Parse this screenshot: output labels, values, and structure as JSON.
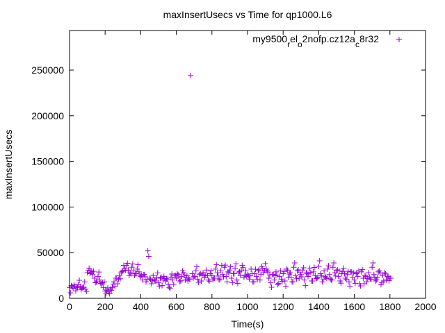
{
  "chart_data": {
    "type": "scatter",
    "title": "maxInsertUsecs vs Time for qp1000.L6",
    "xlabel": "Time(s)",
    "ylabel": "maxInsertUsecs",
    "xlim": [
      0,
      2000
    ],
    "ylim": [
      0,
      280000
    ],
    "xticks": [
      0,
      200,
      400,
      600,
      800,
      1000,
      1200,
      1400,
      1600,
      1800,
      2000
    ],
    "yticks": [
      0,
      50000,
      100000,
      150000,
      200000,
      250000
    ],
    "legend_placement": "top-right",
    "grid": false,
    "series": [
      {
        "name": "my9500_rel_o2nofp.cz12a_c8r32",
        "legend_parts": [
          "my9500",
          "r",
          "el",
          "o",
          "2nofp.cz12a",
          "c",
          "8r32"
        ],
        "color": "#9400d3",
        "marker": "+",
        "x_start": 0,
        "x_step": 10,
        "values": [
          12000,
          14000,
          11000,
          13000,
          12000,
          15000,
          13000,
          11000,
          12000,
          10000,
          28000,
          33000,
          30000,
          26000,
          22000,
          18000,
          24000,
          20000,
          16000,
          12000,
          8000,
          9000,
          7000,
          10000,
          12000,
          18000,
          22000,
          16000,
          25000,
          28000,
          30000,
          33000,
          36000,
          31000,
          28000,
          34000,
          30000,
          27000,
          32000,
          29000,
          24000,
          20000,
          26000,
          18000,
          52000,
          22000,
          16000,
          25000,
          19000,
          23000,
          17000,
          22000,
          14000,
          24000,
          19000,
          21000,
          12000,
          23000,
          20000,
          25000,
          22000,
          26000,
          18000,
          24000,
          28000,
          20000,
          25000,
          22000,
          244000,
          27000,
          24000,
          30000,
          21000,
          26000,
          19000,
          28000,
          23000,
          31000,
          20000,
          27000,
          25000,
          22000,
          32000,
          28000,
          20000,
          30000,
          26000,
          34000,
          24000,
          29000,
          31000,
          22000,
          27000,
          33000,
          20000,
          28000,
          25000,
          36000,
          23000,
          30000,
          26000,
          21000,
          32000,
          18000,
          27000,
          24000,
          30000,
          20000,
          35000,
          28000,
          38000,
          30000,
          22000,
          17000,
          26000,
          20000,
          29000,
          15000,
          24000,
          21000,
          27000,
          19000,
          32000,
          23000,
          28000,
          18000,
          34000,
          25000,
          30000,
          22000,
          26000,
          31000,
          20000,
          28000,
          24000,
          33000,
          19000,
          29000,
          25000,
          22000,
          35000,
          27000,
          18000,
          30000,
          23000,
          32000,
          26000,
          20000,
          34000,
          28000,
          30000,
          24000,
          19000,
          27000,
          33000,
          22000,
          26000,
          18000,
          29000,
          23000,
          20000,
          27000,
          24000,
          16000,
          29000,
          22000,
          25000,
          18000,
          28000,
          21000,
          34000,
          26000,
          19000,
          23000,
          30000,
          15000,
          25000,
          28000,
          20000,
          24000,
          22000
        ]
      }
    ]
  }
}
